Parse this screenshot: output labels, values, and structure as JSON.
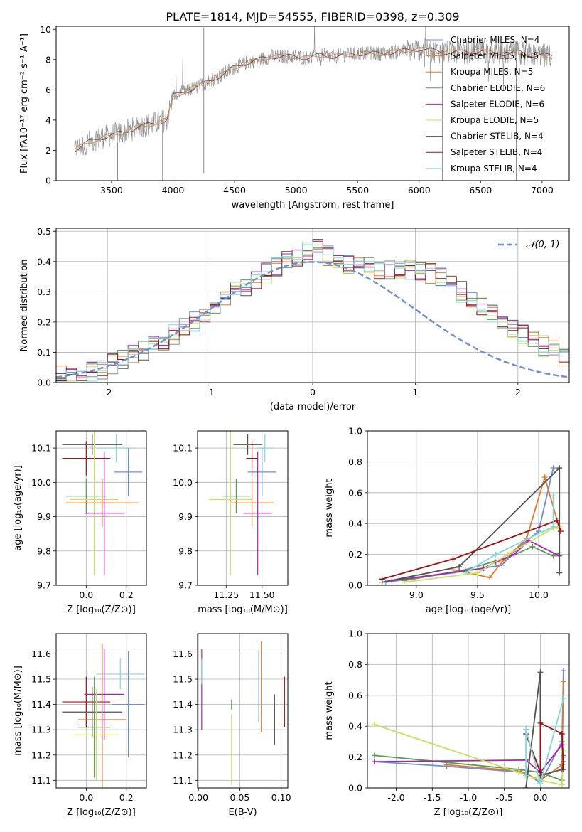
{
  "figure": {
    "title": "PLATE=1814, MJD=54555, FIBERID=0398, z=0.309"
  },
  "colors": {
    "axis": "#000000",
    "grid": "#b0b0b0",
    "blue": "#6a8fd8",
    "orange": "#e07a2a",
    "green": "#5a9a5a",
    "purple": "#b020b0",
    "yellowgreen": "#c8e060",
    "darkgray": "#505050",
    "red": "#a01010",
    "cyan": "#80d8e0",
    "spectrum_gray": "#8c8c8c"
  },
  "chart_data": [
    {
      "id": "spectrum",
      "type": "line",
      "title": "PLATE=1814, MJD=54555, FIBERID=0398, z=0.309",
      "xlabel": "wavelength [Angstrom, rest frame]",
      "ylabel": "Flux [fλ10⁻¹⁷ erg cm⁻² s⁻¹ A⁻¹]",
      "xlim": [
        3050,
        7220
      ],
      "ylim": [
        0,
        10.2
      ],
      "xticks": [
        3500,
        4000,
        4500,
        5000,
        5500,
        6000,
        6500,
        7000
      ],
      "yticks": [
        0,
        2,
        4,
        6,
        8,
        10
      ],
      "grid": false,
      "legend_position": "right",
      "continuum": {
        "x": [
          3200,
          3300,
          3400,
          3500,
          3600,
          3700,
          3800,
          3900,
          3950,
          4000,
          4100,
          4200,
          4300,
          4400,
          4500,
          4600,
          4700,
          4800,
          4900,
          5000,
          5100,
          5200,
          5300,
          5400,
          5500,
          5600,
          5700,
          5800,
          5900,
          6000,
          6100,
          6200,
          6300,
          6400,
          6500,
          6600,
          6700,
          6800,
          6900,
          7000,
          7080
        ],
        "y": [
          2.0,
          2.5,
          2.8,
          3.0,
          3.2,
          3.5,
          3.7,
          3.9,
          4.0,
          5.6,
          5.9,
          6.2,
          6.6,
          7.0,
          7.5,
          7.8,
          8.0,
          8.2,
          8.2,
          8.2,
          8.1,
          8.3,
          8.2,
          8.3,
          8.4,
          8.4,
          8.4,
          8.5,
          8.6,
          8.7,
          8.6,
          8.5,
          8.5,
          8.5,
          8.6,
          8.4,
          8.4,
          8.5,
          8.3,
          8.3,
          8.2
        ]
      },
      "series": [
        {
          "name": "Chabrier MILES, N_SSP=4",
          "color_key": "blue"
        },
        {
          "name": "Salpeter MILES, N_SSP=5",
          "color_key": "orange"
        },
        {
          "name": "Kroupa MILES, N_SSP=5",
          "color_key": "orange"
        },
        {
          "name": "Chabrier ELODIE, N_SSP=6",
          "color_key": "green"
        },
        {
          "name": "Salpeter ELODIE, N_SSP=6",
          "color_key": "purple"
        },
        {
          "name": "Kroupa ELODIE, N_SSP=5",
          "color_key": "yellowgreen"
        },
        {
          "name": "Chabrier STELIB, N_SSP=4",
          "color_key": "darkgray"
        },
        {
          "name": "Salpeter STELIB, N_SSP=4",
          "color_key": "red"
        },
        {
          "name": "Kroupa STELIB, N_SSP=4",
          "color_key": "cyan"
        }
      ]
    },
    {
      "id": "residuals",
      "type": "area",
      "xlabel": "(data-model)/error",
      "ylabel": "Normed distribution",
      "xlim": [
        -2.5,
        2.5
      ],
      "ylim": [
        0,
        0.51
      ],
      "xticks": [
        -2,
        -1,
        0,
        1,
        2
      ],
      "yticks": [
        0.0,
        0.1,
        0.2,
        0.3,
        0.4,
        0.5
      ],
      "grid": true,
      "legend_position": "top-right",
      "gaussian": {
        "name": "𝒩(0, 1)",
        "mean": 0,
        "sigma": 1
      },
      "bin_width": 0.1,
      "histogram_approx": [
        0.02,
        0.022,
        0.03,
        0.035,
        0.045,
        0.06,
        0.075,
        0.09,
        0.105,
        0.12,
        0.14,
        0.16,
        0.18,
        0.205,
        0.23,
        0.255,
        0.28,
        0.3,
        0.32,
        0.34,
        0.36,
        0.38,
        0.4,
        0.415,
        0.43,
        0.44,
        0.42,
        0.41,
        0.395,
        0.385,
        0.38,
        0.375,
        0.37,
        0.38,
        0.375,
        0.37,
        0.36,
        0.345,
        0.32,
        0.3,
        0.275,
        0.25,
        0.225,
        0.2,
        0.18,
        0.16,
        0.14,
        0.12,
        0.105,
        0.09
      ]
    },
    {
      "id": "age-vs-z",
      "type": "scatter",
      "xlabel": "Z [log₁₀(Z/Z⊙)]",
      "ylabel": "age  [log₁₀(age/yr)]",
      "xlim": [
        -0.15,
        0.3
      ],
      "ylim": [
        9.7,
        10.15
      ],
      "xticks": [
        0.0,
        0.2
      ],
      "yticks": [
        9.7,
        9.8,
        9.9,
        10.0,
        10.1
      ],
      "grid": true,
      "points": [
        {
          "color_key": "cyan",
          "x": 0.15,
          "y": 10.1,
          "xerr": 0.1,
          "yerr": 0.04
        },
        {
          "color_key": "darkgray",
          "x": 0.03,
          "y": 10.11,
          "xerr": 0.15,
          "yerr": 0.03
        },
        {
          "color_key": "red",
          "x": 0.0,
          "y": 10.07,
          "xerr": 0.12,
          "yerr": 0.05
        },
        {
          "color_key": "blue",
          "x": 0.21,
          "y": 10.03,
          "xerr": 0.07,
          "yerr": 0.07
        },
        {
          "color_key": "green",
          "x": 0.0,
          "y": 9.96,
          "xerr": 0.1,
          "yerr": 0.05
        },
        {
          "color_key": "orange",
          "x": 0.08,
          "y": 9.94,
          "xerr": 0.18,
          "yerr": 0.07
        },
        {
          "color_key": "yellowgreen",
          "x": 0.04,
          "y": 9.95,
          "xerr": 0.12,
          "yerr": 0.22
        },
        {
          "color_key": "purple",
          "x": 0.09,
          "y": 9.91,
          "xerr": 0.1,
          "yerr": 0.18
        }
      ]
    },
    {
      "id": "age-vs-mass",
      "type": "scatter",
      "xlabel": "mass [log₁₀(M/M⊙)]",
      "xlim": [
        11.05,
        11.68
      ],
      "ylim": [
        9.7,
        10.15
      ],
      "xticks": [
        11.25,
        11.5
      ],
      "yticks": [
        9.7,
        9.8,
        9.9,
        10.0,
        10.1
      ],
      "grid": true,
      "points": [
        {
          "color_key": "cyan",
          "x": 11.52,
          "y": 10.1,
          "xerr": 0.06,
          "yerr": 0.04
        },
        {
          "color_key": "darkgray",
          "x": 11.4,
          "y": 10.11,
          "xerr": 0.1,
          "yerr": 0.03
        },
        {
          "color_key": "red",
          "x": 11.43,
          "y": 10.07,
          "xerr": 0.04,
          "yerr": 0.05
        },
        {
          "color_key": "blue",
          "x": 11.5,
          "y": 10.03,
          "xerr": 0.1,
          "yerr": 0.07
        },
        {
          "color_key": "green",
          "x": 11.32,
          "y": 9.96,
          "xerr": 0.1,
          "yerr": 0.05
        },
        {
          "color_key": "orange",
          "x": 11.43,
          "y": 9.94,
          "xerr": 0.15,
          "yerr": 0.07
        },
        {
          "color_key": "yellowgreen",
          "x": 11.28,
          "y": 9.95,
          "xerr": 0.15,
          "yerr": 0.22
        },
        {
          "color_key": "purple",
          "x": 11.47,
          "y": 9.91,
          "xerr": 0.1,
          "yerr": 0.18
        }
      ]
    },
    {
      "id": "weight-vs-age",
      "type": "line",
      "xlabel": "age  [log₁₀(age/yr)]",
      "ylabel": "mass weight",
      "xlim": [
        8.6,
        10.25
      ],
      "ylim": [
        0,
        1.0
      ],
      "xticks": [
        9.0,
        9.5,
        10.0
      ],
      "yticks": [
        0.0,
        0.2,
        0.4,
        0.6,
        0.8,
        1.0
      ],
      "grid": true,
      "series": [
        {
          "color_key": "blue",
          "x": [
            8.75,
            9.3,
            9.7,
            9.8,
            10.0,
            10.12
          ],
          "y": [
            0.02,
            0.08,
            0.13,
            0.22,
            0.35,
            0.76
          ]
        },
        {
          "color_key": "orange",
          "x": [
            9.3,
            9.6,
            9.7,
            9.9,
            10.05,
            10.17
          ],
          "y": [
            0.1,
            0.05,
            0.15,
            0.3,
            0.7,
            0.37
          ]
        },
        {
          "color_key": "green",
          "x": [
            8.9,
            9.4,
            9.75,
            9.95,
            10.12,
            10.17
          ],
          "y": [
            0.03,
            0.1,
            0.18,
            0.25,
            0.19,
            0.21
          ]
        },
        {
          "color_key": "purple",
          "x": [
            8.8,
            9.55,
            9.65,
            9.8,
            9.92,
            10.17
          ],
          "y": [
            0.03,
            0.11,
            0.15,
            0.2,
            0.29,
            0.19
          ]
        },
        {
          "color_key": "yellowgreen",
          "x": [
            8.9,
            9.5,
            9.75,
            10.12,
            10.17
          ],
          "y": [
            0.02,
            0.08,
            0.2,
            0.37,
            0.38
          ]
        },
        {
          "color_key": "darkgray",
          "x": [
            8.72,
            9.35,
            10.17,
            10.17
          ],
          "y": [
            0.02,
            0.12,
            0.76,
            0.08
          ]
        },
        {
          "color_key": "red",
          "x": [
            8.72,
            9.3,
            10.15,
            10.18
          ],
          "y": [
            0.04,
            0.17,
            0.42,
            0.35
          ]
        },
        {
          "color_key": "cyan",
          "x": [
            9.4,
            9.65,
            10.12,
            10.12
          ],
          "y": [
            0.08,
            0.2,
            0.38,
            0.58
          ]
        }
      ]
    },
    {
      "id": "mass-vs-z",
      "type": "scatter",
      "xlabel": "Z [log₁₀(Z/Z⊙)]",
      "ylabel": "mass [log₁₀(M/M⊙)]",
      "xlim": [
        -0.15,
        0.3
      ],
      "ylim": [
        11.07,
        11.68
      ],
      "xticks": [
        0.0,
        0.2
      ],
      "yticks": [
        11.1,
        11.2,
        11.3,
        11.4,
        11.5,
        11.6
      ],
      "grid": true,
      "points": [
        {
          "color_key": "cyan",
          "x": 0.17,
          "y": 11.52,
          "xerr": 0.12,
          "yerr": 0.06
        },
        {
          "color_key": "red",
          "x": 0.0,
          "y": 11.41,
          "xerr": 0.12,
          "yerr": 0.1
        },
        {
          "color_key": "darkgray",
          "x": 0.03,
          "y": 11.37,
          "xerr": 0.15,
          "yerr": 0.1
        },
        {
          "color_key": "blue",
          "x": 0.21,
          "y": 11.4,
          "xerr": 0.08,
          "yerr": 0.21
        },
        {
          "color_key": "purple",
          "x": 0.09,
          "y": 11.44,
          "xerr": 0.1,
          "yerr": 0.18
        },
        {
          "color_key": "orange",
          "x": 0.08,
          "y": 11.34,
          "xerr": 0.12,
          "yerr": 0.3
        },
        {
          "color_key": "green",
          "x": 0.04,
          "y": 11.31,
          "xerr": 0.08,
          "yerr": 0.2
        },
        {
          "color_key": "yellowgreen",
          "x": 0.05,
          "y": 11.28,
          "xerr": 0.11,
          "yerr": 0.18
        }
      ]
    },
    {
      "id": "mass-vs-ebv",
      "type": "scatter",
      "xlabel": "E(B-V)",
      "xlim": [
        -0.001,
        0.108
      ],
      "ylim": [
        11.07,
        11.68
      ],
      "xticks": [
        0.0,
        0.05,
        0.1
      ],
      "yticks": [
        11.1,
        11.2,
        11.3,
        11.4,
        11.5,
        11.6
      ],
      "grid": true,
      "points": [
        {
          "color_key": "purple",
          "x": 0.004,
          "y": 11.46,
          "xerr": 0,
          "yerr": 0.16
        },
        {
          "color_key": "cyan",
          "x": 0.004,
          "y": 11.53,
          "xerr": 0,
          "yerr": 0.05
        },
        {
          "color_key": "yellowgreen",
          "x": 0.04,
          "y": 11.22,
          "xerr": 0,
          "yerr": 0.14
        },
        {
          "color_key": "green",
          "x": 0.04,
          "y": 11.4,
          "xerr": 0,
          "yerr": 0.02
        },
        {
          "color_key": "blue",
          "x": 0.073,
          "y": 11.47,
          "xerr": 0,
          "yerr": 0.14
        },
        {
          "color_key": "orange",
          "x": 0.076,
          "y": 11.47,
          "xerr": 0,
          "yerr": 0.18
        },
        {
          "color_key": "darkgray",
          "x": 0.092,
          "y": 11.34,
          "xerr": 0,
          "yerr": 0.1
        },
        {
          "color_key": "red",
          "x": 0.104,
          "y": 11.41,
          "xerr": 0,
          "yerr": 0.1
        }
      ]
    },
    {
      "id": "weight-vs-z",
      "type": "line",
      "xlabel": "Z [log₁₀(Z/Z⊙)]",
      "ylabel": "mass weight",
      "xlim": [
        -2.4,
        0.4
      ],
      "ylim": [
        0,
        1.0
      ],
      "xticks": [
        -2.0,
        -1.5,
        -1.0,
        -0.5,
        0.0
      ],
      "yticks": [
        0.0,
        0.2,
        0.4,
        0.6,
        0.8,
        1.0
      ],
      "grid": true,
      "series": [
        {
          "color_key": "blue",
          "x": [
            -2.3,
            -1.3,
            -0.2,
            0.0,
            0.3,
            0.32
          ],
          "y": [
            0.17,
            0.14,
            0.1,
            0.03,
            0.3,
            0.76
          ]
        },
        {
          "color_key": "orange",
          "x": [
            -1.3,
            -0.3,
            0.0,
            0.3,
            0.32
          ],
          "y": [
            0.15,
            0.11,
            0.05,
            0.15,
            0.69
          ]
        },
        {
          "color_key": "green",
          "x": [
            -2.3,
            -0.3,
            0.0,
            0.3,
            0.32
          ],
          "y": [
            0.21,
            0.12,
            0.1,
            0.05,
            0.21
          ]
        },
        {
          "color_key": "purple",
          "x": [
            -2.3,
            -0.2,
            0.0,
            0.3,
            0.32
          ],
          "y": [
            0.17,
            0.18,
            0.1,
            0.28,
            0.2
          ]
        },
        {
          "color_key": "yellowgreen",
          "x": [
            -2.3,
            -0.3,
            0.0,
            0.3,
            0.32
          ],
          "y": [
            0.41,
            0.1,
            0.05,
            0.02,
            0.24
          ]
        },
        {
          "color_key": "darkgray",
          "x": [
            -0.2,
            0.0,
            0.0,
            0.3,
            0.32
          ],
          "y": [
            0.0,
            0.75,
            0.08,
            0.12,
            0.17
          ]
        },
        {
          "color_key": "red",
          "x": [
            -0.2,
            0.0,
            0.0,
            0.3,
            0.32
          ],
          "y": [
            0.35,
            0.1,
            0.42,
            0.35,
            0.12
          ]
        },
        {
          "color_key": "cyan",
          "x": [
            -0.2,
            -0.2,
            0.0,
            0.32
          ],
          "y": [
            0.08,
            0.38,
            0.03,
            0.58
          ]
        }
      ]
    }
  ]
}
